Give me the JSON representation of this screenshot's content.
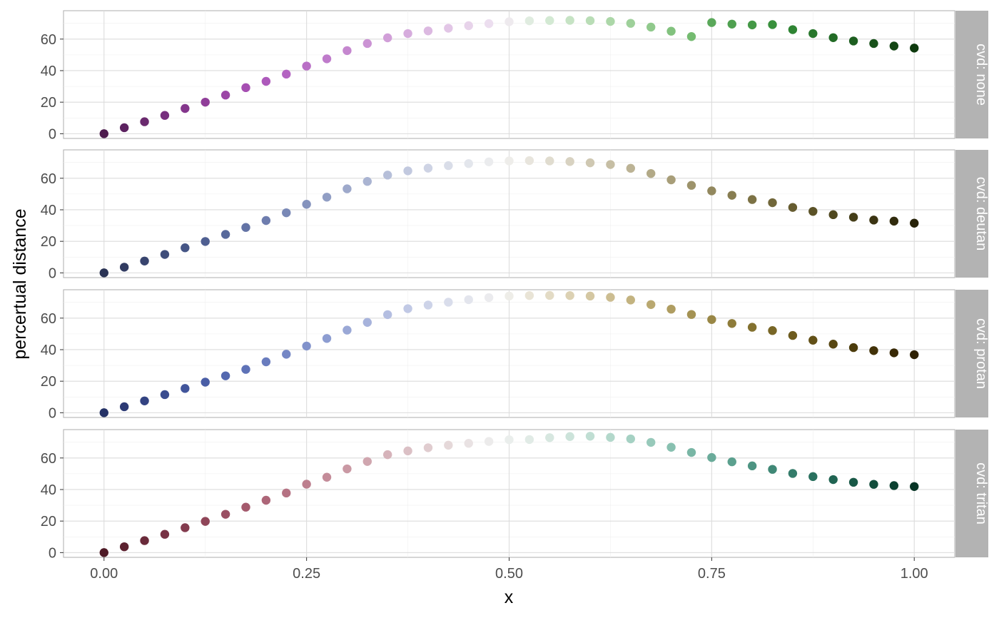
{
  "chart_data": {
    "type": "scatter",
    "title": "",
    "xlabel": "x",
    "ylabel": "percertual distance",
    "xlim": [
      -0.05,
      1.05
    ],
    "ylim": [
      -3,
      78
    ],
    "x_ticks": [
      0,
      0.25,
      0.5,
      0.75,
      1.0
    ],
    "x_tick_labels": [
      "0.00",
      "0.25",
      "0.50",
      "0.75",
      "1.00"
    ],
    "y_ticks": [
      0,
      20,
      40,
      60
    ],
    "y_tick_labels": [
      "0",
      "20",
      "40",
      "60"
    ],
    "x": [
      0,
      0.025,
      0.05,
      0.075,
      0.1,
      0.125,
      0.15,
      0.175,
      0.2,
      0.225,
      0.25,
      0.275,
      0.3,
      0.325,
      0.35,
      0.375,
      0.4,
      0.425,
      0.45,
      0.475,
      0.5,
      0.525,
      0.55,
      0.575,
      0.6,
      0.625,
      0.65,
      0.675,
      0.7,
      0.725,
      0.75,
      0.775,
      0.8,
      0.825,
      0.85,
      0.875,
      0.9,
      0.925,
      0.95,
      0.975,
      1.0
    ],
    "grid": true,
    "facets": [
      {
        "label": "cvd: none",
        "values": [
          0,
          3.8,
          7.6,
          11.6,
          16,
          20,
          24.5,
          29.2,
          33.2,
          37.8,
          42.9,
          47.5,
          52.7,
          57.2,
          60.8,
          63.5,
          65.2,
          66.9,
          68.5,
          69.8,
          71,
          71.6,
          71.8,
          71.9,
          71.7,
          71.2,
          70,
          67.6,
          65,
          61.6,
          70.5,
          69.5,
          69,
          69.2,
          66,
          63.5,
          60.9,
          58.8,
          57.2,
          55.6,
          54.3
        ],
        "colors": [
          "#4e1c4e",
          "#5c2260",
          "#6a2a6e",
          "#772f7e",
          "#84368c",
          "#903e99",
          "#9c46a6",
          "#a64fb2",
          "#ad59bb",
          "#b364c1",
          "#b96fc6",
          "#bf7bcb",
          "#c587cf",
          "#cb93d4",
          "#d19fd8",
          "#d6acdd",
          "#dcb9e1",
          "#e2c6e6",
          "#e7d3ea",
          "#ecdeef",
          "#eeeaee",
          "#e0ece0",
          "#d3e9d3",
          "#c6e3c4",
          "#b9ddb6",
          "#acd7a8",
          "#9ed09a",
          "#90c98c",
          "#82c27e",
          "#74bb70",
          "#5aa85a",
          "#4fa050",
          "#449846",
          "#38903c",
          "#2e8433",
          "#28772c",
          "#226b26",
          "#1d5e20",
          "#18521a",
          "#134614",
          "#0e3a0e"
        ]
      },
      {
        "label": "cvd: deutan",
        "values": [
          0,
          3.6,
          7.5,
          11.7,
          15.9,
          19.9,
          24.4,
          28.8,
          33.2,
          38.1,
          43.5,
          48,
          53.3,
          58,
          62,
          64.7,
          66.4,
          68,
          69.3,
          70.4,
          71,
          71.2,
          71,
          70.6,
          69.8,
          68.7,
          66.3,
          63,
          59,
          55.5,
          52,
          49.2,
          46.5,
          44.5,
          41.5,
          39,
          36.9,
          35.3,
          33.5,
          32.8,
          31.5
        ],
        "colors": [
          "#2a3354",
          "#313b61",
          "#38446e",
          "#3f4d7a",
          "#465686",
          "#4f5f91",
          "#58699b",
          "#6373a5",
          "#6e7dae",
          "#7988b6",
          "#8593bd",
          "#919ec4",
          "#9ea9cb",
          "#aab4d2",
          "#b6bfd9",
          "#c2c9df",
          "#ced3e4",
          "#d9dde8",
          "#e3e6ec",
          "#ebecee",
          "#eeedea",
          "#e8e5dd",
          "#e0dccf",
          "#d8d2c1",
          "#cfc8b2",
          "#c6bea4",
          "#bcb395",
          "#b2a987",
          "#a89e79",
          "#9d936b",
          "#92885e",
          "#877d51",
          "#7c7245",
          "#71673a",
          "#665c30",
          "#5b5227",
          "#50481f",
          "#453e18",
          "#3b3412",
          "#312b0d",
          "#272208"
        ]
      },
      {
        "label": "cvd: protan",
        "values": [
          0,
          3.8,
          7.5,
          11.5,
          15.4,
          19.4,
          23.4,
          27.5,
          32.3,
          37.1,
          42.3,
          47.1,
          52.4,
          57.3,
          62.2,
          66,
          68.3,
          70.1,
          71.7,
          73,
          74,
          74.3,
          74.4,
          74.3,
          74,
          73.2,
          71.5,
          68.6,
          65.7,
          62.3,
          59.1,
          56.6,
          54.2,
          52.1,
          49,
          46,
          43.5,
          41.3,
          39.4,
          38,
          36.8
        ],
        "colors": [
          "#253266",
          "#2c3a74",
          "#334382",
          "#3a4c8f",
          "#41559b",
          "#4a5ea6",
          "#5468af",
          "#5e72b7",
          "#697cbe",
          "#7587c5",
          "#8192cb",
          "#8d9dd1",
          "#9aa8d6",
          "#a7b3dc",
          "#b4bee1",
          "#c1c9e5",
          "#cdd3e8",
          "#d9ddeb",
          "#e3e5ed",
          "#ebebee",
          "#eeede8",
          "#e9e4d6",
          "#e3dbc5",
          "#dcd1b3",
          "#d4c7a2",
          "#ccbd91",
          "#c3b380",
          "#b9a870",
          "#af9d61",
          "#a49253",
          "#998746",
          "#8e7c3a",
          "#83712f",
          "#786626",
          "#6d5b1e",
          "#625017",
          "#574611",
          "#4c3c0c",
          "#423208",
          "#382905",
          "#2f2103"
        ]
      },
      {
        "label": "cvd: tritan",
        "values": [
          0,
          3.7,
          7.6,
          11.6,
          15.8,
          19.8,
          24.3,
          28.8,
          33.2,
          37.8,
          43.4,
          47.8,
          53.1,
          57.8,
          62.1,
          64.5,
          66.5,
          68.1,
          69.3,
          70.5,
          71.6,
          71.7,
          72.9,
          73.6,
          73.8,
          73.1,
          72.1,
          69.9,
          66.8,
          63.5,
          60.3,
          57.6,
          55,
          52.8,
          50.2,
          48.2,
          46.3,
          44.6,
          43.3,
          42.5,
          41.9
        ],
        "colors": [
          "#4e1a26",
          "#5c2230",
          "#6a2a3a",
          "#773244",
          "#833b4e",
          "#8f4558",
          "#9a4f63",
          "#a45a6d",
          "#ad6678",
          "#b57283",
          "#bd7f8e",
          "#c48c99",
          "#ca99a4",
          "#d0a6af",
          "#d6b3ba",
          "#dbc0c5",
          "#e0cccf",
          "#e5d8d9",
          "#e9e2e3",
          "#ecebeb",
          "#eaeeec",
          "#e1ebe6",
          "#d7e7e0",
          "#cce3da",
          "#c0ded3",
          "#b3d8cb",
          "#a5d1c3",
          "#97c9ba",
          "#88c0b0",
          "#79b6a5",
          "#6aab9a",
          "#5ba08e",
          "#4d9482",
          "#408876",
          "#347c6a",
          "#29705e",
          "#206452",
          "#185846",
          "#114c3b",
          "#0b4030",
          "#063425"
        ]
      }
    ]
  }
}
